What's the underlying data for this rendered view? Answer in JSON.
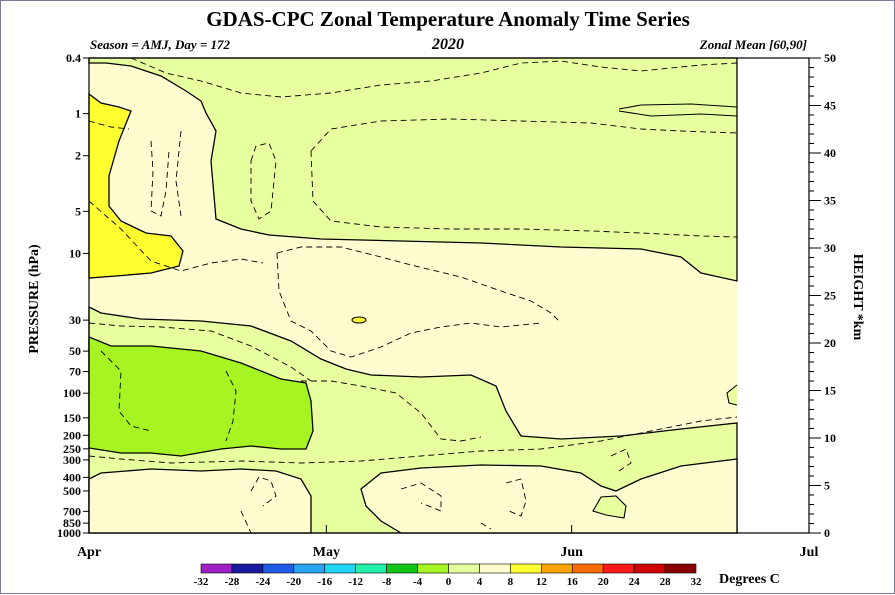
{
  "chart_data": {
    "type": "heatmap",
    "title": "GDAS-CPC Zonal Temperature Anomaly Time Series",
    "subtitle_left": "Season = AMJ, Day = 172",
    "subtitle_center": "2020",
    "subtitle_right": "Zonal Mean [60,90]",
    "ylabel_left": "PRESSURE (hPa)",
    "ylabel_right": "HEIGHT *km",
    "pressure_ticks": [
      "0.4",
      "1",
      "2",
      "5",
      "10",
      "30",
      "50",
      "70",
      "100",
      "150",
      "200",
      "250",
      "300",
      "400",
      "500",
      "700",
      "850",
      "1000"
    ],
    "height_ticks": [
      "50",
      "45",
      "40",
      "35",
      "30",
      "25",
      "20",
      "15",
      "10",
      "5",
      "0"
    ],
    "x_ticks": [
      "Apr",
      "May",
      "Jun",
      "Jul"
    ],
    "colorbar": {
      "label": "Degrees C",
      "ticks": [
        "-32",
        "-28",
        "-24",
        "-20",
        "-16",
        "-12",
        "-8",
        "-4",
        "0",
        "4",
        "8",
        "12",
        "16",
        "20",
        "24",
        "28",
        "32"
      ],
      "colors": [
        "#a020c8",
        "#1a1aa0",
        "#1f5ce6",
        "#27a3f0",
        "#20d4f5",
        "#22f0a8",
        "#12c418",
        "#a6f522",
        "#e8ffa0",
        "#fffdd0",
        "#ffff30",
        "#ffa500",
        "#ff6a00",
        "#ff1a1a",
        "#d00000",
        "#8b0000",
        "#a08040"
      ]
    },
    "regions": [
      {
        "name": "background",
        "value_range": "0 to 4",
        "color": "#fffdd0"
      },
      {
        "name": "upper stratosphere",
        "value_range": "-4 to 0",
        "color": "#e8ffa0"
      },
      {
        "name": "upper warm patch",
        "value_range": "4 to 8",
        "color": "#ffff30"
      },
      {
        "name": "lower stratosphere",
        "value_range": "-4 to 0",
        "color": "#e8ffa0"
      },
      {
        "name": "early-April lower stratosphere",
        "value_range": "-8 to -4",
        "color": "#a6f522"
      },
      {
        "name": "troposphere",
        "value_range": "-4 to 0",
        "color": "#e8ffa0"
      },
      {
        "name": "small warm spot near 30hPa",
        "value_range": "4 to 8",
        "color": "#ffff30"
      }
    ]
  }
}
